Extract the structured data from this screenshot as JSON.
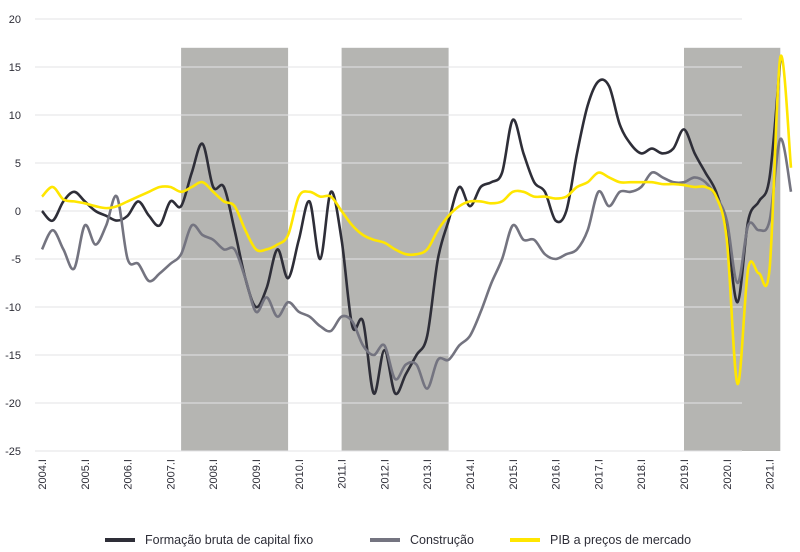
{
  "chart_data": {
    "type": "line",
    "categories": [
      "2004.I",
      null,
      null,
      null,
      "2005.I",
      null,
      null,
      null,
      "2006.I",
      null,
      null,
      null,
      "2007.I",
      null,
      null,
      null,
      "2008.I",
      null,
      null,
      null,
      "2009.I",
      null,
      null,
      null,
      "2010.I",
      null,
      null,
      null,
      "2011.I",
      null,
      null,
      null,
      "2012.I",
      null,
      null,
      null,
      "2013.I",
      null,
      null,
      null,
      "2014.I",
      null,
      null,
      null,
      "2015.I",
      null,
      null,
      null,
      "2016.I",
      null,
      null,
      null,
      "2017.I",
      null,
      null,
      null,
      "2018.I",
      null,
      null,
      null,
      "2019.I",
      null,
      null,
      null,
      "2020.I",
      null,
      null,
      null,
      "2021.I",
      null,
      null
    ],
    "series": [
      {
        "name": "Formação bruta de capital fixo",
        "color": "#2e2e38",
        "values": [
          0,
          -1,
          1,
          2,
          1,
          0,
          -0.5,
          -1,
          -0.5,
          1,
          -0.5,
          -1.5,
          1,
          0.5,
          4,
          7,
          2.5,
          2.5,
          -2,
          -7,
          -10,
          -8,
          -4,
          -7,
          -3,
          1,
          -5,
          2,
          -3,
          -12,
          -11.5,
          -19,
          -14.5,
          -19,
          -17,
          -15,
          -13,
          -5,
          -1,
          2.5,
          0.5,
          2.5,
          3,
          4,
          9.5,
          6,
          3,
          2,
          -1,
          0,
          6,
          11,
          13.5,
          13,
          9,
          7,
          6,
          6.5,
          6,
          6.5,
          8.5,
          6,
          4,
          2,
          -2,
          -9.5,
          -1,
          1,
          3.5,
          15.8,
          null
        ]
      },
      {
        "name": "Construção",
        "color": "#747480",
        "values": [
          -4,
          -2,
          -4,
          -6,
          -1.5,
          -3.5,
          -1.5,
          1.5,
          -5,
          -5.5,
          -7.3,
          -6.5,
          -5.5,
          -4.5,
          -1.5,
          -2.5,
          -3,
          -4,
          -4,
          -7,
          -10.5,
          -9,
          -11,
          -9.5,
          -10.5,
          -11,
          -12,
          -12.5,
          -11,
          -11.5,
          -14,
          -15,
          -14,
          -17.5,
          -16,
          -16,
          -18.5,
          -15.5,
          -15.5,
          -14,
          -13,
          -10.5,
          -7.5,
          -5,
          -1.5,
          -3,
          -3,
          -4.5,
          -5,
          -4.5,
          -4,
          -2,
          2,
          0.5,
          2,
          2,
          2.5,
          4,
          3.5,
          3,
          3,
          3.5,
          3,
          1.5,
          -1,
          -7.5,
          -1.5,
          -2,
          -1,
          7.5,
          2
        ]
      },
      {
        "name": "PIB a preços de mercado",
        "color": "#ffe600",
        "values": [
          1.5,
          2.5,
          1.2,
          1,
          0.8,
          0.5,
          0.3,
          0.5,
          1,
          1.5,
          2,
          2.5,
          2.5,
          2,
          2.5,
          3,
          2,
          1,
          0.5,
          -2,
          -4,
          -4,
          -3.5,
          -2.5,
          1.5,
          2,
          1.5,
          1.5,
          0,
          -1.5,
          -2.5,
          -3,
          -3.3,
          -4,
          -4.5,
          -4.5,
          -4,
          -2,
          -0.5,
          0.5,
          1,
          1,
          0.8,
          1,
          2,
          2,
          1.5,
          1.5,
          1.3,
          1.5,
          2.5,
          3,
          4,
          3.5,
          3,
          3,
          3,
          3,
          2.8,
          2.8,
          2.7,
          2.5,
          2.5,
          1.5,
          -3,
          -18,
          -6,
          -6.5,
          -6,
          16,
          4.5
        ]
      }
    ],
    "ylim": [
      -25,
      20
    ],
    "yticks": [
      -25,
      -20,
      -15,
      -10,
      -5,
      0,
      5,
      10,
      15,
      20
    ],
    "grid": true,
    "shaded": [
      {
        "from": 13,
        "to": 23
      },
      {
        "from": 28,
        "to": 38
      },
      {
        "from": 60,
        "to": 69
      }
    ],
    "shade_ylim": [
      -25,
      17
    ],
    "shade_color": "#b5b5b2",
    "legend": "bottom"
  }
}
